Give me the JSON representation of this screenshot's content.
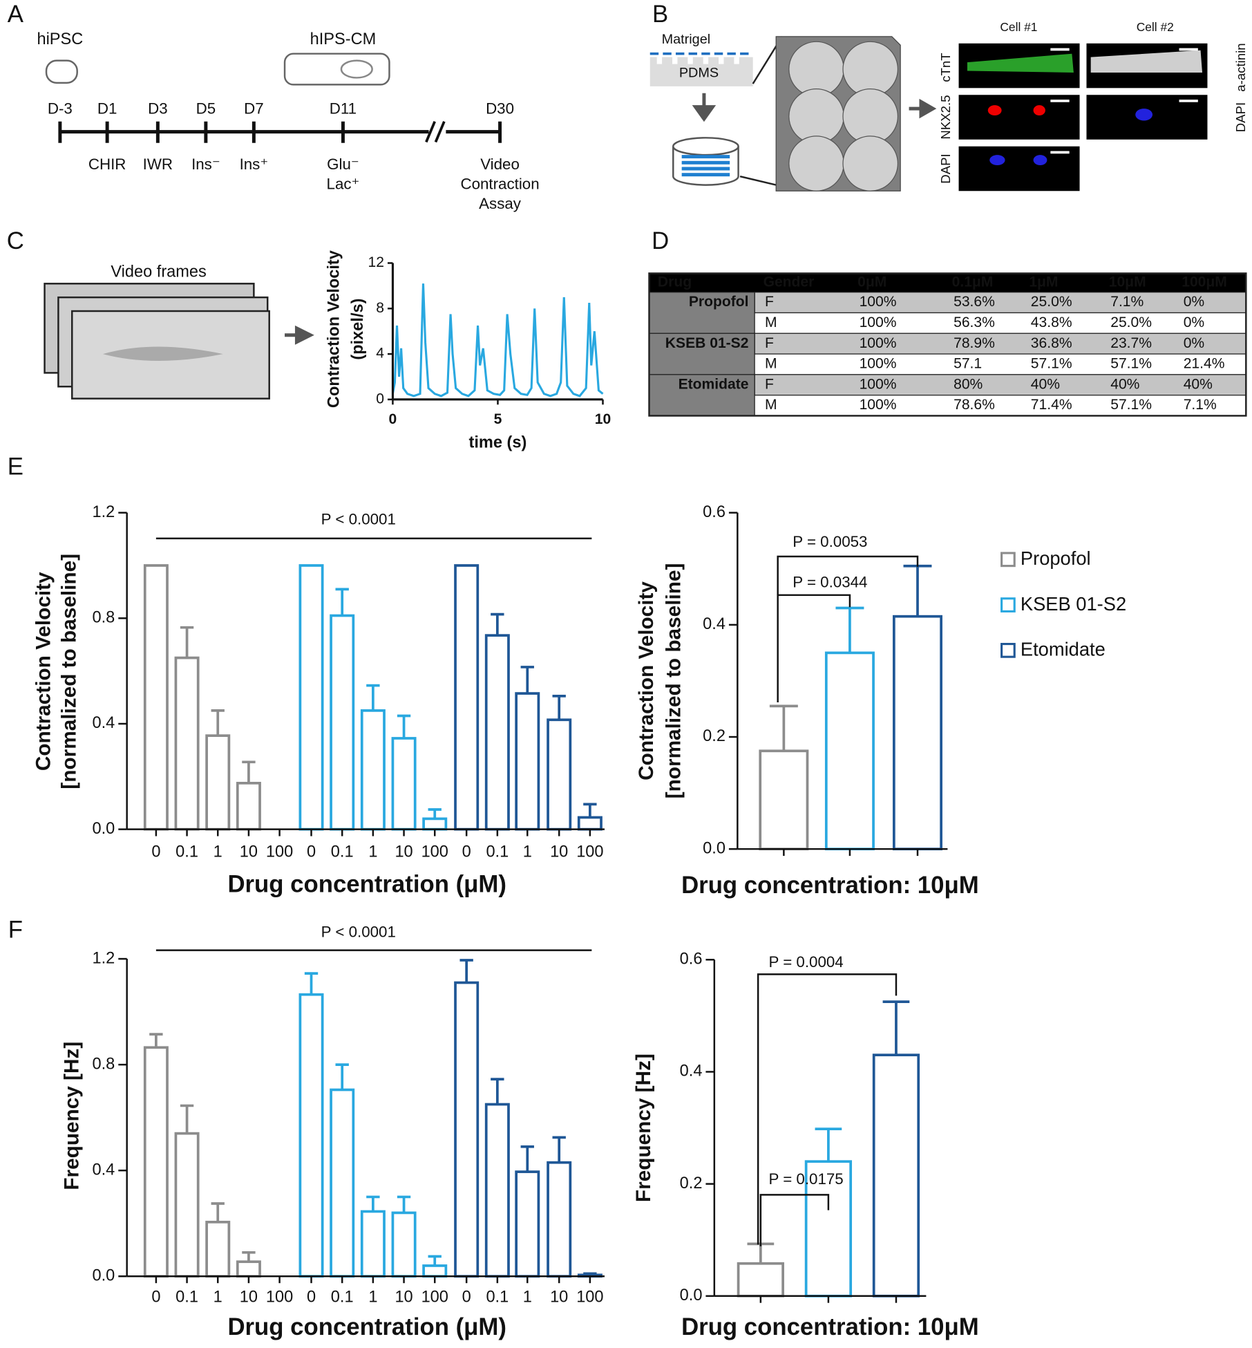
{
  "panel_labels": [
    "A",
    "B",
    "C",
    "D",
    "E",
    "F"
  ],
  "timeline": {
    "stages": [
      "hiPSC",
      "hIPS-CM"
    ],
    "days": [
      "D-3",
      "D1",
      "D3",
      "D5",
      "D7",
      "D11",
      "D30"
    ],
    "treatments": [
      [
        "CHIR"
      ],
      [
        "IWR"
      ],
      [
        "Ins⁻"
      ],
      [
        "Ins⁺"
      ],
      [
        "Glu⁻",
        "Lac⁺"
      ],
      [
        "Video",
        "Contraction",
        "Assay"
      ]
    ]
  },
  "culture": {
    "matrigel": "Matrigel",
    "pdms": "PDMS"
  },
  "staining": {
    "cells": [
      "Cell #1",
      "Cell #2"
    ],
    "left_labels": [
      "cTnT",
      "NKX2.5",
      "DAPI"
    ],
    "right_labels": [
      "a-actinin",
      "DAPI"
    ]
  },
  "video_frames": "Video frames",
  "table": {
    "header": [
      "Drug",
      "Gender",
      "0μM",
      "0.1μM",
      "1μM",
      "10μM",
      "100μM"
    ],
    "rows": [
      [
        "Propofol",
        "F",
        "100%",
        "53.6%",
        "25.0%",
        "7.1%",
        "0%"
      ],
      [
        null,
        "M",
        "100%",
        "56.3%",
        "43.8%",
        "25.0%",
        "0%"
      ],
      [
        "KSEB 01-S2",
        "F",
        "100%",
        "78.9%",
        "36.8%",
        "23.7%",
        "0%"
      ],
      [
        null,
        "M",
        "100%",
        "57.1",
        "57.1%",
        "57.1%",
        "21.4%"
      ],
      [
        "Etomidate",
        "F",
        "100%",
        "80%",
        "40%",
        "40%",
        "40%"
      ],
      [
        null,
        "M",
        "100%",
        "78.6%",
        "71.4%",
        "57.1%",
        "7.1%"
      ]
    ]
  },
  "chart_data": [
    {
      "type": "line",
      "ylabel": [
        "Contraction Velocity",
        "(pixel/s)"
      ],
      "xlabel": "time (s)",
      "x": [
        0,
        0.1,
        0.2,
        0.3,
        0.4,
        0.5,
        0.7,
        1.0,
        1.3,
        1.45,
        1.55,
        1.7,
        2.0,
        2.3,
        2.6,
        2.75,
        2.85,
        3.0,
        3.3,
        3.6,
        3.9,
        4.05,
        4.15,
        4.3,
        4.5,
        4.8,
        5.1,
        5.3,
        5.45,
        5.6,
        5.8,
        6.1,
        6.4,
        6.6,
        6.75,
        6.9,
        7.2,
        7.5,
        7.8,
        8.0,
        8.15,
        8.3,
        8.6,
        8.9,
        9.2,
        9.35,
        9.45,
        9.6,
        9.8,
        10
      ],
      "values": [
        0.5,
        1.5,
        6.5,
        2,
        4.5,
        1,
        0.5,
        0.3,
        0.5,
        10.2,
        5,
        1,
        0.5,
        0.3,
        0.6,
        7.5,
        4,
        1,
        0.5,
        0.3,
        0.8,
        6.5,
        3,
        4.5,
        0.8,
        0.5,
        0.4,
        0.8,
        7.5,
        4,
        1,
        0.5,
        0.4,
        1,
        8,
        1.5,
        0.5,
        0.3,
        0.5,
        1.5,
        9,
        1.2,
        0.5,
        0.3,
        1,
        8.5,
        3,
        6,
        0.8,
        0.5
      ],
      "color": "#29a8e0",
      "xlim": [
        0,
        10
      ],
      "xticks": [
        0,
        5,
        10
      ],
      "ylim": [
        0,
        12
      ],
      "yticks": [
        0,
        4,
        8,
        12
      ]
    },
    {
      "type": "bar",
      "ylabel": [
        "Contraction Velocity",
        "[normalized to baseline]"
      ],
      "xlabel": "Drug concentration (μM)",
      "categories": [
        "0",
        "0.1",
        "1",
        "10",
        "100"
      ],
      "series": [
        {
          "color": "#8c8c8c",
          "values": [
            1.0,
            0.65,
            0.355,
            0.175,
            0
          ],
          "errors": [
            null,
            0.115,
            0.095,
            0.08,
            null
          ]
        },
        {
          "color": "#29a8e0",
          "values": [
            1.0,
            0.81,
            0.45,
            0.345,
            0.04
          ],
          "errors": [
            null,
            0.1,
            0.095,
            0.085,
            0.035
          ]
        },
        {
          "color": "#1f5796",
          "values": [
            1.0,
            0.735,
            0.515,
            0.415,
            0.045
          ],
          "errors": [
            null,
            0.08,
            0.1,
            0.09,
            0.05
          ]
        }
      ],
      "ylim": [
        0,
        1.2
      ],
      "yticks": [
        {
          "value": 0,
          "label": "0.0"
        },
        0.4,
        0.8,
        1.2
      ],
      "annotations": [
        "P < 0.0001"
      ]
    },
    {
      "type": "bar",
      "ylabel": [
        "Contraction Velocity",
        "[normalized to baseline]"
      ],
      "xlabel": "Drug concentration: 10μM",
      "series": [
        {
          "name": "Propofol",
          "color": "#8c8c8c",
          "values": [
            0.175
          ],
          "errors": [
            0.08
          ]
        },
        {
          "name": "KSEB 01-S2",
          "color": "#29a8e0",
          "values": [
            0.35
          ],
          "errors": [
            0.08
          ]
        },
        {
          "name": "Etomidate",
          "color": "#1f5796",
          "values": [
            0.415
          ],
          "errors": [
            0.09
          ]
        }
      ],
      "ylim": [
        0,
        0.6
      ],
      "yticks": [
        {
          "value": 0,
          "label": "0.0"
        },
        0.2,
        0.4,
        0.6
      ],
      "annotations": [
        "P = 0.0344",
        "P = 0.0053"
      ],
      "legend": "right"
    },
    {
      "type": "bar",
      "ylabel": [
        "Frequency [Hz]"
      ],
      "xlabel": "Drug concentration (μM)",
      "categories": [
        "0",
        "0.1",
        "1",
        "10",
        "100"
      ],
      "series": [
        {
          "color": "#8c8c8c",
          "values": [
            0.865,
            0.54,
            0.205,
            0.055,
            0
          ],
          "errors": [
            0.05,
            0.105,
            0.07,
            0.035,
            null
          ]
        },
        {
          "color": "#29a8e0",
          "values": [
            1.065,
            0.705,
            0.245,
            0.24,
            0.04
          ],
          "errors": [
            0.08,
            0.095,
            0.055,
            0.06,
            0.035
          ]
        },
        {
          "color": "#1f5796",
          "values": [
            1.11,
            0.65,
            0.395,
            0.43,
            0.005
          ],
          "errors": [
            0.085,
            0.095,
            0.095,
            0.095,
            0.005
          ]
        }
      ],
      "ylim": [
        0,
        1.2
      ],
      "yticks": [
        {
          "value": 0,
          "label": "0.0"
        },
        0.4,
        0.8,
        1.2
      ],
      "annotations": [
        "P < 0.0001"
      ]
    },
    {
      "type": "bar",
      "ylabel": [
        "Frequency [Hz]"
      ],
      "xlabel": "Drug concentration: 10μM",
      "series": [
        {
          "color": "#8c8c8c",
          "values": [
            0.058
          ],
          "errors": [
            0.035
          ]
        },
        {
          "color": "#29a8e0",
          "values": [
            0.24
          ],
          "errors": [
            0.058
          ]
        },
        {
          "color": "#1f5796",
          "values": [
            0.43
          ],
          "errors": [
            0.095
          ]
        }
      ],
      "ylim": [
        0,
        0.6
      ],
      "yticks": [
        {
          "value": 0,
          "label": "0.0"
        },
        0.2,
        0.4,
        0.6
      ],
      "annotations": [
        "P = 0.0175",
        "P = 0.0004"
      ]
    }
  ]
}
